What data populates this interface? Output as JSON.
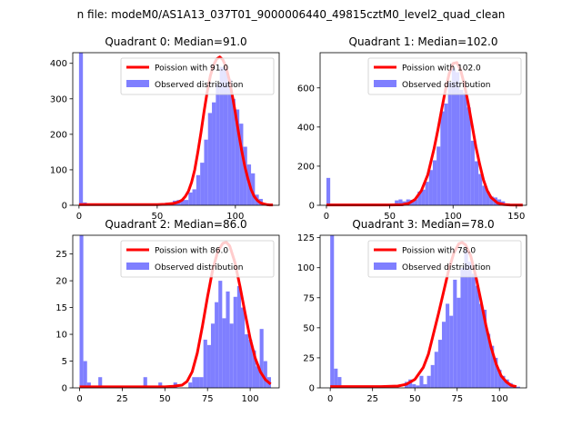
{
  "suptitle": "n file: modeM0/AS1A13_037T01_9000006440_49815cztM0_level2_quad_clean",
  "colors": {
    "poisson": "#ff0000",
    "observed": "#7f7fff",
    "axis": "#000000",
    "background": "#ffffff"
  },
  "chart_data": [
    {
      "type": "bar",
      "title": "Quadrant 0: Median=91.0",
      "xlim": [
        -4,
        128
      ],
      "ylim": [
        0,
        430
      ],
      "xticks": [
        0,
        50,
        100
      ],
      "yticks": [
        0,
        100,
        200,
        300,
        400
      ],
      "legend": {
        "placement": "top-right",
        "entries": [
          "Poission with 91.0",
          "Observed distribution"
        ]
      },
      "series": [
        {
          "name": "Observed distribution",
          "kind": "histogram",
          "bin_width": 2.5,
          "bins": [
            [
              0,
              430
            ],
            [
              2.5,
              8
            ],
            [
              55,
              7
            ],
            [
              57.5,
              5
            ],
            [
              60,
              13
            ],
            [
              62.5,
              15
            ],
            [
              65,
              16
            ],
            [
              67.5,
              15
            ],
            [
              70,
              36
            ],
            [
              72.5,
              45
            ],
            [
              75,
              85
            ],
            [
              77.5,
              120
            ],
            [
              80,
              185
            ],
            [
              82.5,
              260
            ],
            [
              85,
              290
            ],
            [
              87.5,
              340
            ],
            [
              90,
              390
            ],
            [
              92.5,
              385
            ],
            [
              95,
              355
            ],
            [
              97.5,
              300
            ],
            [
              100,
              270
            ],
            [
              102.5,
              230
            ],
            [
              105,
              165
            ],
            [
              107.5,
              115
            ],
            [
              110,
              90
            ],
            [
              112.5,
              30
            ],
            [
              115,
              18
            ],
            [
              117.5,
              5
            ]
          ]
        },
        {
          "name": "Poission with 91.0",
          "kind": "line",
          "x": [
            0,
            5,
            10,
            15,
            20,
            25,
            30,
            35,
            40,
            45,
            50,
            55,
            60,
            62,
            64,
            66,
            68,
            70,
            72,
            74,
            76,
            78,
            80,
            82,
            84,
            86,
            88,
            90,
            92,
            94,
            96,
            98,
            100,
            102,
            104,
            106,
            108,
            110,
            112,
            114,
            116,
            118,
            120,
            122,
            124
          ],
          "y": [
            2,
            2,
            2,
            2,
            2,
            2,
            2,
            2,
            2,
            2,
            2,
            3,
            5,
            7,
            10,
            15,
            25,
            40,
            65,
            100,
            150,
            205,
            265,
            320,
            365,
            395,
            412,
            418,
            410,
            390,
            355,
            310,
            260,
            205,
            155,
            110,
            75,
            45,
            25,
            14,
            7,
            4,
            2,
            1,
            1
          ]
        }
      ]
    },
    {
      "type": "bar",
      "title": "Quadrant 1: Median=102.0",
      "xlim": [
        -5,
        158
      ],
      "ylim": [
        0,
        780
      ],
      "xticks": [
        0,
        50,
        100,
        150
      ],
      "yticks": [
        0,
        200,
        400,
        600
      ],
      "legend": {
        "placement": "top-right",
        "entries": [
          "Poission with 102.0",
          "Observed distribution"
        ]
      },
      "series": [
        {
          "name": "Observed distribution",
          "kind": "histogram",
          "bin_width": 3,
          "bins": [
            [
              0,
              140
            ],
            [
              3,
              5
            ],
            [
              54,
              25
            ],
            [
              57,
              30
            ],
            [
              60,
              20
            ],
            [
              63,
              30
            ],
            [
              66,
              28
            ],
            [
              69,
              30
            ],
            [
              72,
              70
            ],
            [
              75,
              80
            ],
            [
              78,
              120
            ],
            [
              81,
              180
            ],
            [
              84,
              230
            ],
            [
              87,
              300
            ],
            [
              90,
              480
            ],
            [
              93,
              520
            ],
            [
              96,
              630
            ],
            [
              99,
              700
            ],
            [
              102,
              680
            ],
            [
              105,
              590
            ],
            [
              108,
              575
            ],
            [
              111,
              500
            ],
            [
              114,
              330
            ],
            [
              117,
              225
            ],
            [
              120,
              160
            ],
            [
              123,
              100
            ],
            [
              126,
              70
            ],
            [
              129,
              45
            ],
            [
              132,
              40
            ],
            [
              135,
              30
            ],
            [
              138,
              20
            ],
            [
              141,
              8
            ],
            [
              144,
              5
            ],
            [
              147,
              3
            ]
          ]
        },
        {
          "name": "Poission with 102.0",
          "kind": "line",
          "x": [
            0,
            10,
            20,
            30,
            40,
            50,
            60,
            65,
            70,
            75,
            80,
            85,
            88,
            91,
            94,
            97,
            100,
            103,
            106,
            109,
            112,
            115,
            118,
            121,
            124,
            127,
            130,
            135,
            140,
            145,
            150,
            155
          ],
          "y": [
            2,
            2,
            2,
            2,
            2,
            2,
            3,
            10,
            30,
            75,
            155,
            290,
            385,
            490,
            590,
            675,
            725,
            730,
            690,
            615,
            520,
            410,
            300,
            210,
            130,
            75,
            40,
            12,
            4,
            2,
            1,
            1
          ]
        }
      ]
    },
    {
      "type": "bar",
      "title": "Quadrant 2: Median=86.0",
      "xlim": [
        -4,
        117
      ],
      "ylim": [
        0,
        28.5
      ],
      "xticks": [
        0,
        25,
        50,
        75,
        100
      ],
      "yticks": [
        0,
        5,
        10,
        15,
        20,
        25
      ],
      "legend": {
        "placement": "top-right",
        "entries": [
          "Poission with 86.0",
          "Observed distribution"
        ]
      },
      "series": [
        {
          "name": "Observed distribution",
          "kind": "histogram",
          "bin_width": 2.2,
          "bins": [
            [
              0,
              28.5
            ],
            [
              2.2,
              5
            ],
            [
              4.4,
              1
            ],
            [
              11,
              2
            ],
            [
              37.4,
              2
            ],
            [
              46.2,
              1
            ],
            [
              55,
              1
            ],
            [
              63.8,
              1
            ],
            [
              66,
              2
            ],
            [
              68.2,
              2
            ],
            [
              70.4,
              2
            ],
            [
              72.6,
              9
            ],
            [
              74.8,
              8
            ],
            [
              77,
              12
            ],
            [
              79.2,
              16
            ],
            [
              81.4,
              20
            ],
            [
              83.6,
              13
            ],
            [
              85.8,
              18
            ],
            [
              88,
              12
            ],
            [
              90.2,
              17
            ],
            [
              92.4,
              19
            ],
            [
              94.6,
              15
            ],
            [
              96.8,
              10
            ],
            [
              99,
              9
            ],
            [
              101.2,
              7
            ],
            [
              103.4,
              4
            ],
            [
              105.6,
              11
            ],
            [
              107.8,
              5
            ],
            [
              110,
              2
            ]
          ]
        },
        {
          "name": "Poission with 86.0",
          "kind": "line",
          "x": [
            0,
            10,
            20,
            30,
            40,
            50,
            55,
            60,
            63,
            66,
            69,
            72,
            75,
            78,
            81,
            84,
            86,
            88,
            91,
            94,
            97,
            100,
            103,
            106,
            109,
            112
          ],
          "y": [
            0.2,
            0.2,
            0.2,
            0.2,
            0.2,
            0.2,
            0.3,
            0.5,
            1.2,
            3,
            6.5,
            11.5,
            17,
            22,
            25.5,
            27,
            27.2,
            26.5,
            23.5,
            19,
            14,
            9.2,
            5.5,
            3,
            1.5,
            0.7
          ]
        }
      ]
    },
    {
      "type": "bar",
      "title": "Quadrant 3: Median=78.0",
      "xlim": [
        -6,
        116
      ],
      "ylim": [
        0,
        127
      ],
      "xticks": [
        0,
        25,
        50,
        75,
        100
      ],
      "yticks": [
        0,
        25,
        50,
        75,
        100,
        125
      ],
      "legend": {
        "placement": "top-right",
        "entries": [
          "Poission with 78.0",
          "Observed distribution"
        ]
      },
      "series": [
        {
          "name": "Observed distribution",
          "kind": "histogram",
          "bin_width": 2.2,
          "bins": [
            [
              0,
              127
            ],
            [
              2.2,
              16
            ],
            [
              4.4,
              9
            ],
            [
              44,
              5
            ],
            [
              46.2,
              7
            ],
            [
              48.4,
              3
            ],
            [
              50.6,
              2
            ],
            [
              52.8,
              10
            ],
            [
              55,
              3
            ],
            [
              57.2,
              10
            ],
            [
              59.4,
              19
            ],
            [
              61.6,
              30
            ],
            [
              63.8,
              40
            ],
            [
              66,
              55
            ],
            [
              68.2,
              70
            ],
            [
              70.4,
              60
            ],
            [
              72.6,
              90
            ],
            [
              74.8,
              75
            ],
            [
              77,
              100
            ],
            [
              79.2,
              115
            ],
            [
              81.4,
              105
            ],
            [
              83.6,
              95
            ],
            [
              85.8,
              85
            ],
            [
              88,
              70
            ],
            [
              90.2,
              65
            ],
            [
              92.4,
              45
            ],
            [
              94.6,
              35
            ],
            [
              96.8,
              25
            ],
            [
              99,
              15
            ],
            [
              101.2,
              10
            ],
            [
              103.4,
              7
            ],
            [
              105.6,
              4
            ],
            [
              107.8,
              2
            ],
            [
              110,
              1
            ]
          ]
        },
        {
          "name": "Poission with 78.0",
          "kind": "line",
          "x": [
            0,
            10,
            20,
            30,
            40,
            45,
            50,
            55,
            58,
            61,
            64,
            67,
            70,
            73,
            76,
            78,
            80,
            83,
            86,
            89,
            92,
            95,
            98,
            101,
            104,
            107,
            110
          ],
          "y": [
            1,
            1,
            1,
            1,
            1.5,
            3,
            7,
            17,
            28,
            45,
            62,
            80,
            98,
            112,
            120,
            121,
            119,
            110,
            93,
            73,
            52,
            34,
            20,
            10,
            5,
            2,
            1
          ]
        }
      ]
    }
  ]
}
